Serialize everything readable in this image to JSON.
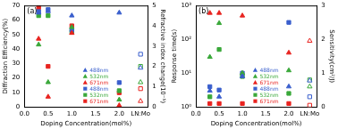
{
  "chart_data": [
    {
      "type": "scatter",
      "title": "(a)",
      "x_label": "Doping Concentration(mol%)",
      "y_label": "Diffraction Efficiency(%)",
      "y2_label": "Refractive index change(10⁻⁵)",
      "x": [
        0.3,
        0.5,
        1.0,
        2.0,
        2.45
      ],
      "xlim": [
        0,
        2.6
      ],
      "xticks": [
        {
          "value": 0,
          "label": "0.0"
        },
        {
          "value": 0.5,
          "label": "0.5"
        },
        {
          "value": 1,
          "label": "1.0"
        },
        {
          "value": 1.5,
          "label": "1.5"
        },
        {
          "value": 2,
          "label": "2.0"
        },
        {
          "value": 2.45,
          "label": "LN:Mo"
        }
      ],
      "ylim": [
        0,
        70
      ],
      "yticks": [
        0,
        10,
        20,
        30,
        40,
        50,
        60,
        70
      ],
      "y2lim": [
        0,
        5
      ],
      "y2ticks": [
        0,
        1,
        2,
        3,
        4,
        5
      ],
      "grid": false,
      "legend": "lower right",
      "series": [
        {
          "name": "488nm",
          "color": "#3a5fcd",
          "marker": "triangle",
          "values": [
            65,
            66,
            63,
            65,
            27
          ]
        },
        {
          "name": "532nm",
          "color": "#3aa83a",
          "marker": "triangle",
          "values": [
            43,
            17,
            55,
            5,
            17
          ]
        },
        {
          "name": "671nm",
          "color": "#e8231f",
          "marker": "triangle",
          "values": [
            47,
            7,
            51,
            1,
            4
          ]
        },
        {
          "name": "488nm",
          "color": "#3a5fcd",
          "marker": "square",
          "axis": "y2",
          "values": [
            4.7,
            4.8,
            3.8,
            1.2,
            2.6
          ]
        },
        {
          "name": "532nm",
          "color": "#3aa83a",
          "marker": "square",
          "axis": "y2",
          "values": [
            4.5,
            4.5,
            3.7,
            0.8,
            2.0
          ]
        },
        {
          "name": "671nm",
          "color": "#e8231f",
          "marker": "square",
          "axis": "y2",
          "values": [
            4.9,
            2.0,
            4.0,
            0.7,
            0.9
          ]
        }
      ]
    },
    {
      "type": "scatter",
      "title": "(b)",
      "x_label": "Doping Concentration(mol%)",
      "y_label": "Response time(s)",
      "y2_label": "Sensitivity(cm²/J)",
      "x": [
        0.3,
        0.5,
        1.0,
        2.0,
        2.45
      ],
      "xlim": [
        0,
        2.6
      ],
      "xticks": [
        {
          "value": 0,
          "label": "0.0"
        },
        {
          "value": 0.5,
          "label": "0.5"
        },
        {
          "value": 1,
          "label": "1.0"
        },
        {
          "value": 1.5,
          "label": "1.5"
        },
        {
          "value": 2,
          "label": "2.0"
        },
        {
          "value": 2.45,
          "label": "LN:Mo"
        }
      ],
      "log": "y",
      "ylim": [
        1,
        1000
      ],
      "yticks": [
        {
          "value": 1,
          "label": "10⁰"
        },
        {
          "value": 10,
          "label": "10¹"
        },
        {
          "value": 100,
          "label": "10²"
        },
        {
          "value": 1000,
          "label": "10³"
        }
      ],
      "y2lim": [
        0,
        3
      ],
      "y2ticks": [
        0,
        1,
        2,
        3
      ],
      "grid": false,
      "legend": "lower right",
      "series": [
        {
          "name": "488nm",
          "color": "#3a5fcd",
          "marker": "triangle",
          "values": [
            3,
            2,
            8,
            4,
            6
          ]
        },
        {
          "name": "532nm",
          "color": "#3aa83a",
          "marker": "triangle",
          "values": [
            30,
            300,
            10,
            12,
            4
          ]
        },
        {
          "name": "671nm",
          "color": "#e8231f",
          "marker": "triangle",
          "values": [
            600,
            600,
            500,
            40,
            90
          ]
        },
        {
          "name": "488nm",
          "color": "#3a5fcd",
          "marker": "square",
          "axis": "y2",
          "values": [
            0.6,
            0.5,
            1.0,
            2.5,
            0.3
          ]
        },
        {
          "name": "532nm",
          "color": "#3aa83a",
          "marker": "square",
          "axis": "y2",
          "values": [
            0.3,
            1.7,
            0.9,
            0.4,
            0.8
          ]
        },
        {
          "name": "671nm",
          "color": "#e8231f",
          "marker": "square",
          "axis": "y2",
          "values": [
            0.1,
            0.1,
            0.1,
            0.1,
            0.05
          ]
        }
      ]
    }
  ]
}
